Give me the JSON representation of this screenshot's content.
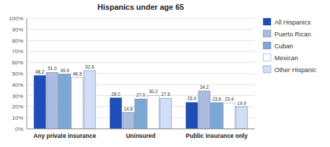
{
  "chart_data": {
    "type": "bar",
    "title": "Hispanics under age 65",
    "categories": [
      "Any private insurance",
      "Uninsured",
      "Public insurance only"
    ],
    "series": [
      {
        "name": "All Hispanics",
        "color": "#1e4db7",
        "values": [
          48.2,
          28.0,
          23.9
        ],
        "value_labels": [
          "48.2",
          "28.0",
          "23.9"
        ]
      },
      {
        "name": "Puerto Rican",
        "color": "#aabde0",
        "values": [
          51.0,
          14.8,
          34.2
        ],
        "value_labels": [
          "51.0",
          "14.8",
          "34.2"
        ]
      },
      {
        "name": "Cuban",
        "color": "#7ba7d4",
        "values": [
          49.4,
          27.0,
          23.6
        ],
        "value_labels": [
          "49.4",
          "27.0",
          "23.6"
        ]
      },
      {
        "name": "Mexican",
        "color": "#ffffff",
        "values": [
          46.3,
          30.2,
          23.4
        ],
        "value_labels": [
          "46.3",
          "30.2",
          "23.4"
        ]
      },
      {
        "name": "Other Hispanic",
        "color": "#d0dff5",
        "values": [
          52.6,
          27.6,
          19.9
        ],
        "value_labels": [
          "52.6",
          "27.6",
          "19.9"
        ]
      }
    ],
    "ylim": [
      0,
      100
    ],
    "yticks": [
      {
        "value": 0,
        "label": "0%"
      },
      {
        "value": 10,
        "label": "10%"
      },
      {
        "value": 20,
        "label": "20%"
      },
      {
        "value": 30,
        "label": "30%"
      },
      {
        "value": 40,
        "label": "40%"
      },
      {
        "value": 50,
        "label": "50%"
      },
      {
        "value": 60,
        "label": "60%"
      },
      {
        "value": 70,
        "label": "70%"
      },
      {
        "value": 80,
        "label": "80%"
      },
      {
        "value": 90,
        "label": "90%"
      },
      {
        "value": 100,
        "label": "100%"
      }
    ],
    "grid": true,
    "legend": "right",
    "data_labels": true
  }
}
